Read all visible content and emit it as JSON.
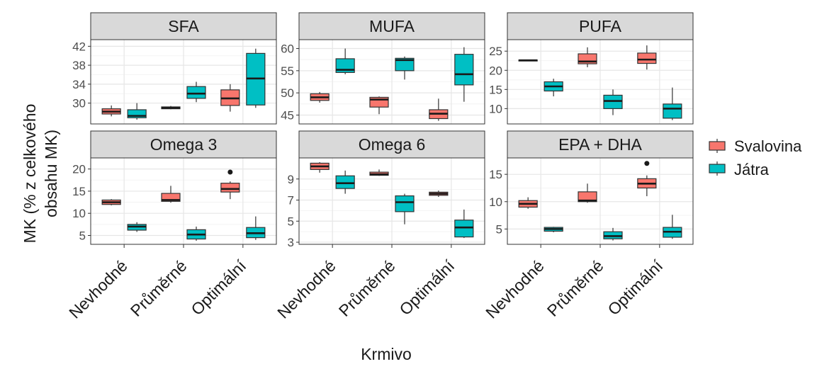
{
  "chart_data": {
    "type": "boxplot",
    "xlabel": "Krmivo",
    "ylabel_lines": [
      "MK (% z celkového",
      "obsahu MK)"
    ],
    "categories": [
      "Nevhodné",
      "Průměrné",
      "Optimální"
    ],
    "legend": {
      "position": "right",
      "entries": [
        {
          "name": "Svalovina",
          "color": "#F8766D"
        },
        {
          "name": "Játra",
          "color": "#00BFC4"
        }
      ]
    },
    "grid": true,
    "panels": [
      {
        "title": "SFA",
        "ylim": [
          25.6,
          43.4
        ],
        "yticks": [
          30,
          34,
          38,
          42
        ],
        "boxes": {
          "Svalovina": [
            {
              "category": "Nevhodné",
              "min": 27.2,
              "q1": 27.7,
              "median": 28.2,
              "q3": 28.8,
              "max": 29.5
            },
            {
              "category": "Průměrné",
              "min": 28.7,
              "q1": 28.8,
              "median": 29.0,
              "q3": 29.2,
              "max": 29.4
            },
            {
              "category": "Optimální",
              "min": 28.2,
              "q1": 29.5,
              "median": 31.0,
              "q3": 32.8,
              "max": 34.0
            }
          ],
          "Játra": [
            {
              "category": "Nevhodné",
              "min": 26.5,
              "q1": 26.9,
              "median": 27.3,
              "q3": 28.6,
              "max": 30.0
            },
            {
              "category": "Průměrné",
              "min": 30.2,
              "q1": 31.0,
              "median": 32.0,
              "q3": 33.5,
              "max": 34.5
            },
            {
              "category": "Optimální",
              "min": 29.0,
              "q1": 29.6,
              "median": 35.2,
              "q3": 40.5,
              "max": 41.5
            }
          ]
        },
        "outliers": []
      },
      {
        "title": "MUFA",
        "ylim": [
          43.0,
          62.0
        ],
        "yticks": [
          45,
          50,
          55,
          60
        ],
        "boxes": {
          "Svalovina": [
            {
              "category": "Nevhodné",
              "min": 47.8,
              "q1": 48.3,
              "median": 49.0,
              "q3": 49.8,
              "max": 50.2
            },
            {
              "category": "Průměrné",
              "min": 45.2,
              "q1": 46.8,
              "median": 48.5,
              "q3": 49.0,
              "max": 49.2
            },
            {
              "category": "Optimální",
              "min": 43.7,
              "q1": 44.2,
              "median": 45.3,
              "q3": 46.2,
              "max": 48.7
            }
          ],
          "Játra": [
            {
              "category": "Nevhodné",
              "min": 54.2,
              "q1": 54.6,
              "median": 55.2,
              "q3": 57.7,
              "max": 60.0
            },
            {
              "category": "Průměrné",
              "min": 53.0,
              "q1": 55.0,
              "median": 57.4,
              "q3": 57.8,
              "max": 58.2
            },
            {
              "category": "Optimální",
              "min": 48.0,
              "q1": 51.8,
              "median": 54.2,
              "q3": 58.7,
              "max": 60.3
            }
          ]
        },
        "outliers": []
      },
      {
        "title": "PUFA",
        "ylim": [
          6.0,
          28.0
        ],
        "yticks": [
          10,
          15,
          20,
          25
        ],
        "boxes": {
          "Svalovina": [
            {
              "category": "Nevhodné",
              "min": 22.4,
              "q1": 22.5,
              "median": 22.6,
              "q3": 22.7,
              "max": 22.8
            },
            {
              "category": "Průměrné",
              "min": 20.8,
              "q1": 21.7,
              "median": 22.3,
              "q3": 24.3,
              "max": 26.0
            },
            {
              "category": "Optimální",
              "min": 20.2,
              "q1": 21.8,
              "median": 22.8,
              "q3": 24.5,
              "max": 26.5
            }
          ],
          "Játra": [
            {
              "category": "Nevhodné",
              "min": 13.2,
              "q1": 14.6,
              "median": 15.8,
              "q3": 17.0,
              "max": 17.8
            },
            {
              "category": "Průměrné",
              "min": 8.3,
              "q1": 10.0,
              "median": 12.0,
              "q3": 13.5,
              "max": 15.0
            },
            {
              "category": "Optimální",
              "min": 7.0,
              "q1": 7.5,
              "median": 10.0,
              "q3": 11.2,
              "max": 15.5
            }
          ]
        },
        "outliers": []
      },
      {
        "title": "Omega 3",
        "ylim": [
          3.0,
          22.5
        ],
        "yticks": [
          5,
          10,
          15,
          20
        ],
        "boxes": {
          "Svalovina": [
            {
              "category": "Nevhodné",
              "min": 11.8,
              "q1": 12.0,
              "median": 12.5,
              "q3": 13.0,
              "max": 13.2
            },
            {
              "category": "Průměrné",
              "min": 12.4,
              "q1": 12.7,
              "median": 13.0,
              "q3": 14.5,
              "max": 16.2
            },
            {
              "category": "Optimální",
              "min": 13.2,
              "q1": 14.8,
              "median": 15.5,
              "q3": 16.8,
              "max": 17.2
            }
          ],
          "Játra": [
            {
              "category": "Nevhodné",
              "min": 5.8,
              "q1": 6.2,
              "median": 7.0,
              "q3": 7.5,
              "max": 8.0
            },
            {
              "category": "Průměrné",
              "min": 3.8,
              "q1": 4.2,
              "median": 5.2,
              "q3": 6.3,
              "max": 7.0
            },
            {
              "category": "Optimální",
              "min": 4.0,
              "q1": 4.5,
              "median": 5.5,
              "q3": 6.8,
              "max": 9.3
            }
          ]
        },
        "outliers": [
          {
            "series": "Svalovina",
            "category": "Optimální",
            "value": 19.3
          }
        ]
      },
      {
        "title": "Omega 6",
        "ylim": [
          2.8,
          11.0
        ],
        "yticks": [
          3,
          5,
          7,
          9
        ],
        "boxes": {
          "Svalovina": [
            {
              "category": "Nevhodné",
              "min": 9.6,
              "q1": 9.9,
              "median": 10.2,
              "q3": 10.5,
              "max": 10.6
            },
            {
              "category": "Průměrné",
              "min": 9.3,
              "q1": 9.35,
              "median": 9.45,
              "q3": 9.65,
              "max": 9.9
            },
            {
              "category": "Optimální",
              "min": 7.3,
              "q1": 7.45,
              "median": 7.6,
              "q3": 7.75,
              "max": 7.9
            }
          ],
          "Játra": [
            {
              "category": "Nevhodné",
              "min": 7.6,
              "q1": 8.1,
              "median": 8.6,
              "q3": 9.3,
              "max": 9.8
            },
            {
              "category": "Průměrné",
              "min": 4.7,
              "q1": 5.9,
              "median": 6.8,
              "q3": 7.4,
              "max": 7.6
            },
            {
              "category": "Optimální",
              "min": 3.4,
              "q1": 3.5,
              "median": 4.4,
              "q3": 5.1,
              "max": 6.1
            }
          ]
        },
        "outliers": []
      },
      {
        "title": "EPA + DHA",
        "ylim": [
          2.2,
          18.0
        ],
        "yticks": [
          5,
          10,
          15
        ],
        "boxes": {
          "Svalovina": [
            {
              "category": "Nevhodné",
              "min": 8.7,
              "q1": 9.0,
              "median": 9.6,
              "q3": 10.2,
              "max": 10.8
            },
            {
              "category": "Průměrné",
              "min": 9.8,
              "q1": 10.0,
              "median": 10.2,
              "q3": 11.8,
              "max": 13.3
            },
            {
              "category": "Optimální",
              "min": 11.0,
              "q1": 12.5,
              "median": 13.3,
              "q3": 14.2,
              "max": 14.8
            }
          ],
          "Játra": [
            {
              "category": "Nevhodné",
              "min": 4.4,
              "q1": 4.6,
              "median": 5.0,
              "q3": 5.3,
              "max": 5.4
            },
            {
              "category": "Průměrné",
              "min": 2.9,
              "q1": 3.2,
              "median": 3.7,
              "q3": 4.5,
              "max": 5.2
            },
            {
              "category": "Optimální",
              "min": 3.2,
              "q1": 3.5,
              "median": 4.5,
              "q3": 5.3,
              "max": 7.6
            }
          ]
        },
        "outliers": [
          {
            "series": "Svalovina",
            "category": "Optimální",
            "value": 17.0
          }
        ]
      }
    ]
  }
}
